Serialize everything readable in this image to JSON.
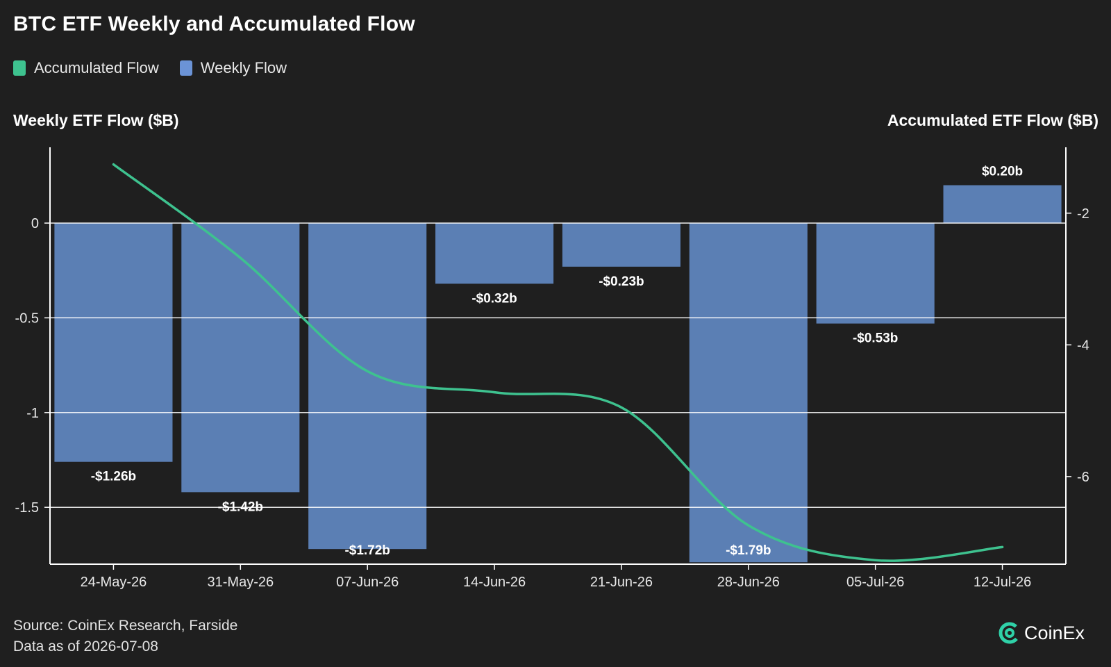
{
  "title": "BTC ETF Weekly and Accumulated Flow",
  "legend": [
    {
      "label": "Accumulated Flow",
      "color": "#3ec28f"
    },
    {
      "label": "Weekly Flow",
      "color": "#6b93d6"
    }
  ],
  "left_axis_title": "Weekly ETF Flow ($B)",
  "right_axis_title": "Accumulated ETF Flow ($B)",
  "footer": {
    "source": "Source: CoinEx Research, Farside",
    "data_as_of": "Data as of 2026-07-08"
  },
  "brand": {
    "name": "CoinEx",
    "icon": "coinex-logo-icon"
  },
  "chart_data": {
    "type": "bar",
    "title": "BTC ETF Weekly and Accumulated Flow",
    "categories": [
      "24-May-26",
      "31-May-26",
      "07-Jun-26",
      "14-Jun-26",
      "21-Jun-26",
      "28-Jun-26",
      "05-Jul-26",
      "12-Jul-26"
    ],
    "series": [
      {
        "name": "Weekly Flow",
        "type": "bar",
        "axis": "left",
        "color": "#5b7fb4",
        "values": [
          -1.26,
          -1.42,
          -1.72,
          -0.32,
          -0.23,
          -1.79,
          -0.53,
          0.2
        ],
        "labels": [
          "-$1.26b",
          "-$1.42b",
          "-$1.72b",
          "-$0.32b",
          "-$0.23b",
          "-$1.79b",
          "-$0.53b",
          "$0.20b"
        ]
      },
      {
        "name": "Accumulated Flow",
        "type": "line",
        "axis": "right",
        "color": "#3ec28f",
        "values": [
          -1.26,
          -2.68,
          -4.4,
          -4.72,
          -4.95,
          -6.74,
          -7.27,
          -7.07
        ]
      }
    ],
    "ylabel": "Weekly ETF Flow ($B)",
    "ylim": [
      -1.8,
      0.4
    ],
    "yticks": [
      0,
      -0.5,
      -1,
      -1.5
    ],
    "ytick_labels": [
      "0",
      "-0.5",
      "-1",
      "-1.5"
    ],
    "y2label": "Accumulated ETF Flow ($B)",
    "y2lim": [
      -7.33,
      -1.0
    ],
    "y2ticks": [
      -2,
      -4,
      -6
    ],
    "y2tick_labels": [
      "-2",
      "-4",
      "-6"
    ],
    "grid": "horizontal",
    "legend_position": "top-left"
  }
}
